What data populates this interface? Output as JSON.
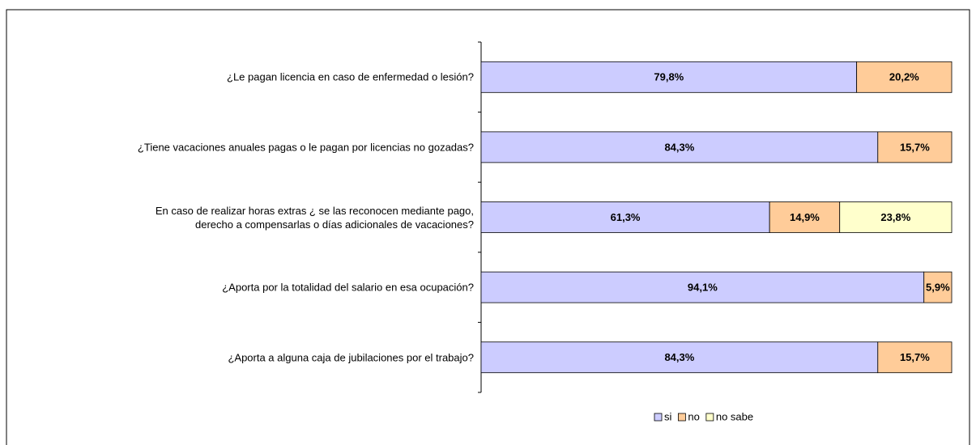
{
  "chart_data": {
    "type": "stacked-bar-horizontal",
    "categories": [
      "¿Le pagan licencia en caso de enfermedad o lesión?",
      "¿Tiene vacaciones anuales pagas o le pagan por licencias no gozadas?",
      "En caso de realizar horas extras ¿ se las reconocen mediante pago,\nderecho a compensarlas o días adicionales de vacaciones?",
      "¿Aporta por la totalidad del salario en esa ocupación?",
      "¿Aporta a alguna caja de jubilaciones por el trabajo?"
    ],
    "series": [
      {
        "name": "si",
        "color": "#ccccff",
        "values": [
          79.8,
          84.3,
          61.3,
          94.1,
          84.3
        ],
        "value_labels": [
          "79,8%",
          "84,3%",
          "61,3%",
          "94,1%",
          "84,3%"
        ]
      },
      {
        "name": "no",
        "color": "#ffcc99",
        "values": [
          20.2,
          15.7,
          14.9,
          5.9,
          15.7
        ],
        "value_labels": [
          "20,2%",
          "15,7%",
          "14,9%",
          "5,9%",
          "15,7%"
        ]
      },
      {
        "name": "no sabe",
        "color": "#ffffcc",
        "values": [
          null,
          null,
          23.8,
          null,
          null
        ],
        "value_labels": [
          null,
          null,
          "23,8%",
          null,
          null
        ]
      }
    ],
    "xlim": [
      0,
      100
    ],
    "legend": "bottom"
  }
}
